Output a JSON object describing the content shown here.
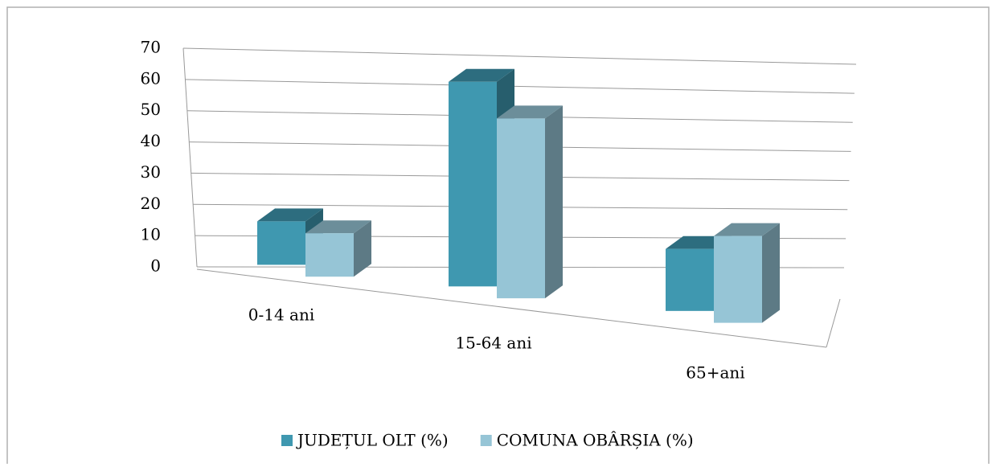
{
  "chart_data": {
    "type": "bar3d",
    "categories": [
      "0-14 ani",
      "15-64 ani",
      "65+ani"
    ],
    "series": [
      {
        "name": "JUDEȚUL OLT (%)",
        "color": "#3f98b0",
        "values": [
          14,
          66,
          20
        ]
      },
      {
        "name": "COMUNA OBÂRȘIA (%)",
        "color": "#96c5d6",
        "values": [
          14,
          58,
          28
        ]
      }
    ],
    "ylim": [
      0,
      70
    ],
    "yticks": [
      0,
      10,
      20,
      30,
      40,
      50,
      60,
      70
    ],
    "grid": true,
    "legend": "bottom"
  }
}
